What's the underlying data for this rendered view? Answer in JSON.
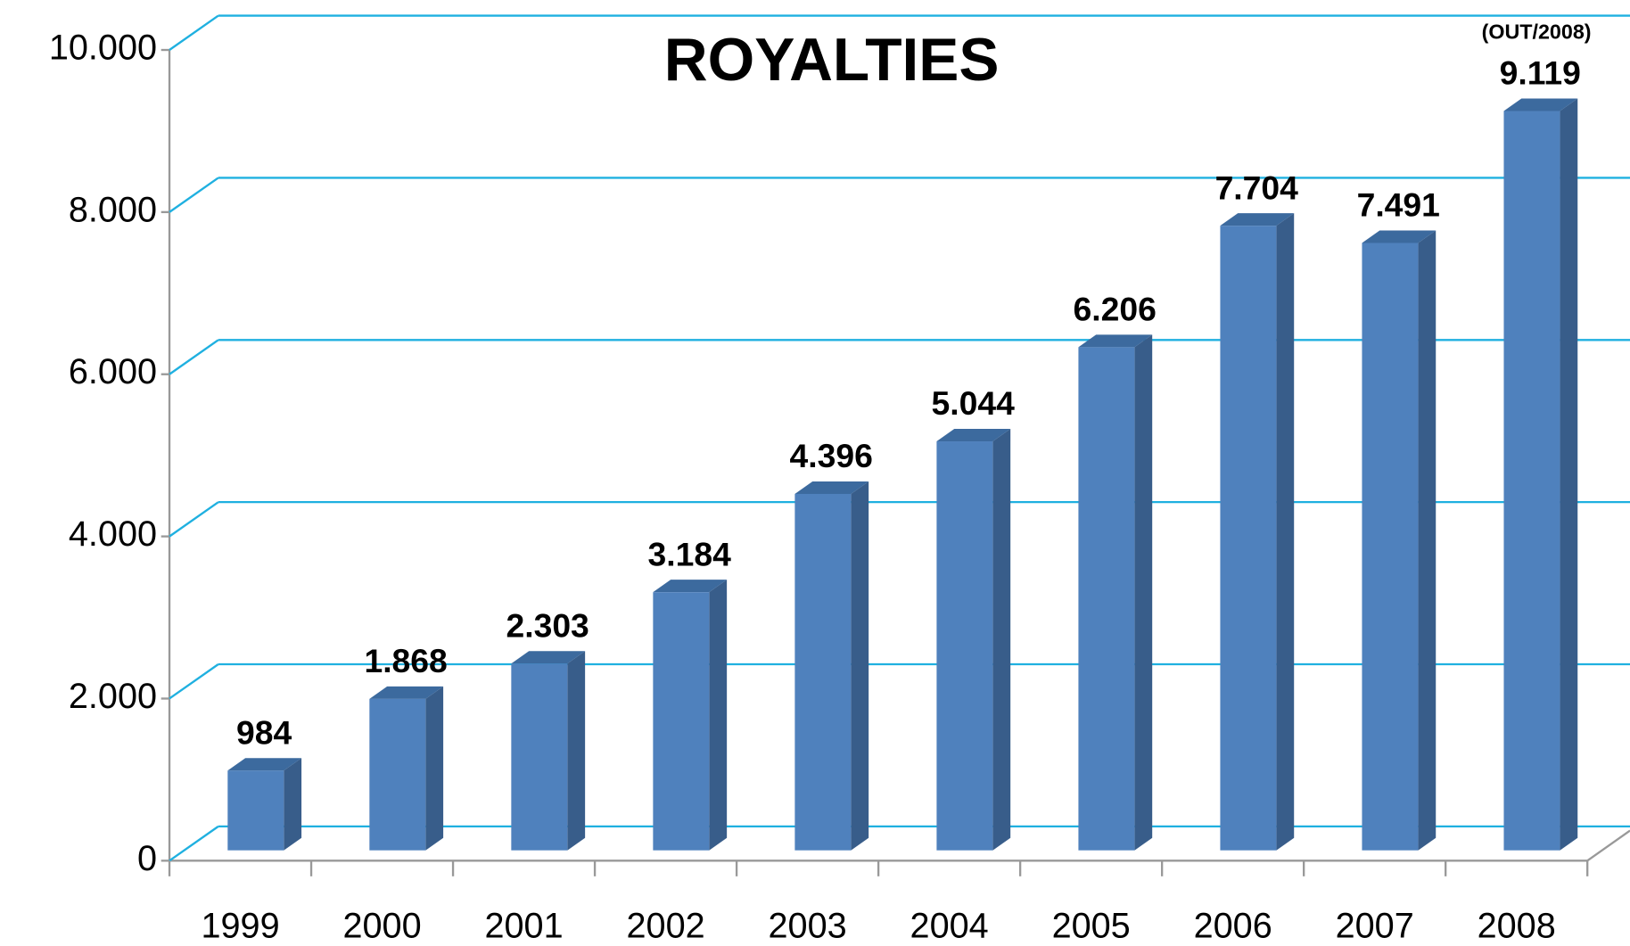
{
  "chart_data": {
    "type": "bar3d",
    "title": "ROYALTIES",
    "annotation": "(OUT/2008)",
    "categories": [
      "1999",
      "2000",
      "2001",
      "2002",
      "2003",
      "2004",
      "2005",
      "2006",
      "2007",
      "2008"
    ],
    "values": [
      984,
      1868,
      2303,
      3184,
      4396,
      5044,
      6206,
      7704,
      7491,
      9119
    ],
    "value_labels": [
      "984",
      "1.868",
      "2.303",
      "3.184",
      "4.396",
      "5.044",
      "6.206",
      "7.704",
      "7.491",
      "9.119"
    ],
    "color": "#4f81bd",
    "ylim": [
      0,
      10000
    ],
    "yticks": [
      0,
      {
        "value": 2000,
        "label": "2.000"
      },
      {
        "value": 4000,
        "label": "4.000"
      },
      {
        "value": 6000,
        "label": "6.000"
      },
      {
        "value": 8000,
        "label": "8.000"
      },
      {
        "value": 10000,
        "label": "10.000"
      }
    ],
    "grid": true
  }
}
